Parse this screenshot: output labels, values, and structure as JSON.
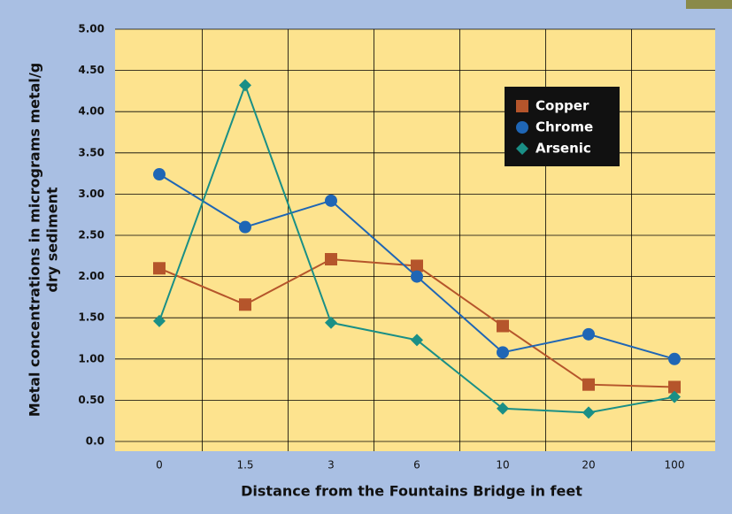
{
  "chart_data": {
    "type": "line",
    "x_label": "Distance from the Fountains Bridge in feet",
    "y_label": [
      "Metal concentrations in micrograms metal/g",
      "dry sediment"
    ],
    "categories": [
      "0",
      "1.5",
      "3",
      "6",
      "10",
      "20",
      "100"
    ],
    "series": [
      {
        "name": "Copper",
        "color": "#b5552b",
        "marker": "square",
        "values": [
          2.1,
          1.66,
          2.21,
          2.13,
          1.4,
          0.69,
          0.66
        ]
      },
      {
        "name": "Chrome",
        "color": "#1f66b5",
        "marker": "circle",
        "values": [
          3.24,
          2.6,
          2.92,
          2.0,
          1.08,
          1.3,
          1.0
        ]
      },
      {
        "name": "Arsenic",
        "color": "#1a8f86",
        "marker": "diamond",
        "values": [
          1.46,
          4.32,
          1.44,
          1.23,
          0.4,
          0.35,
          0.54
        ]
      }
    ],
    "ylim": [
      0,
      5
    ],
    "yticks": [
      {
        "value": 0,
        "label": "0.0"
      },
      {
        "value": 0.5,
        "label": "0.50"
      },
      {
        "value": 1,
        "label": "1.00"
      },
      {
        "value": 1.5,
        "label": "1.50"
      },
      {
        "value": 2,
        "label": "2.00"
      },
      {
        "value": 2.5,
        "label": "2.50"
      },
      {
        "value": 3,
        "label": "3.00"
      },
      {
        "value": 3.5,
        "label": "3.50"
      },
      {
        "value": 4,
        "label": "4.00"
      },
      {
        "value": 4.5,
        "label": "4.50"
      },
      {
        "value": 5,
        "label": "5.00"
      }
    ],
    "grid": true
  }
}
